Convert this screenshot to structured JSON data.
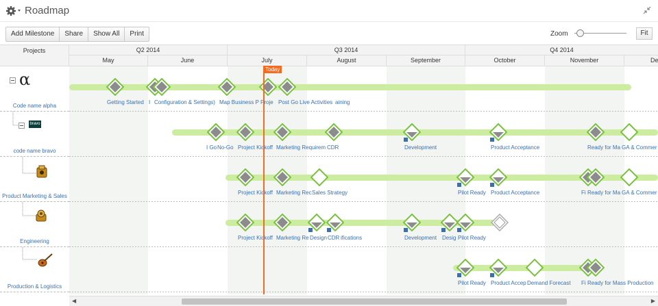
{
  "app": {
    "title": "Roadmap"
  },
  "toolbar": {
    "buttons": [
      "Add Milestone",
      "Share",
      "Show All",
      "Print"
    ],
    "zoom_label": "Zoom",
    "fit_label": "Fit",
    "zoom_level": 0.1
  },
  "header": {
    "projects_label": "Projects",
    "quarters": [
      "Q2 2014",
      "Q3 2014",
      "Q4 2014"
    ],
    "months": [
      "May",
      "June",
      "July",
      "August",
      "September",
      "October",
      "November",
      "De"
    ]
  },
  "today_label": "Today",
  "colors": {
    "accent": "#f26b21",
    "bar": "#ccec9f",
    "diamond": "#8c8c8c",
    "diamond_border": "#7ac142",
    "link": "#3a6fb0"
  },
  "projects": [
    {
      "name": "Code name alpha",
      "icon": "alpha-symbol-icon",
      "milestones": [
        "Getting Started",
        "I",
        "Configuration & Settings)",
        "Map Business P",
        "Proje",
        "Post Go Live Activities",
        "aining"
      ]
    },
    {
      "name": "code name bravo",
      "icon": "bravo-logo-icon",
      "logo_text": "bravo",
      "milestones": [
        "I Go",
        "No-Go",
        "Project Kickoff",
        "Marketing Requirem",
        "CDR",
        "Development",
        "Product Acceptance",
        "Ready for Ma",
        "GA & Commer"
      ]
    },
    {
      "name": "Product Marketing & Sales",
      "icon": "box-icon",
      "milestones": [
        "Project Kickoff",
        "Marketing Rec",
        "Sales Strategy",
        "Pilot Ready",
        "Product Acceptance",
        "Fi",
        "Ready for Ma",
        "GA & Commer"
      ]
    },
    {
      "name": "Engineering",
      "icon": "gear-box-icon",
      "milestones": [
        "Project Kickoff",
        "Marketing Re",
        "Design",
        "CDR",
        "ifications",
        "Development",
        "Desig",
        "Pilot Ready"
      ]
    },
    {
      "name": "Production & Logistics",
      "icon": "guitar-icon",
      "milestones": [
        "Pilot Ready",
        "Product Accep",
        "Demand Forecast",
        "Fi",
        "Ready for Mass Production"
      ]
    }
  ]
}
